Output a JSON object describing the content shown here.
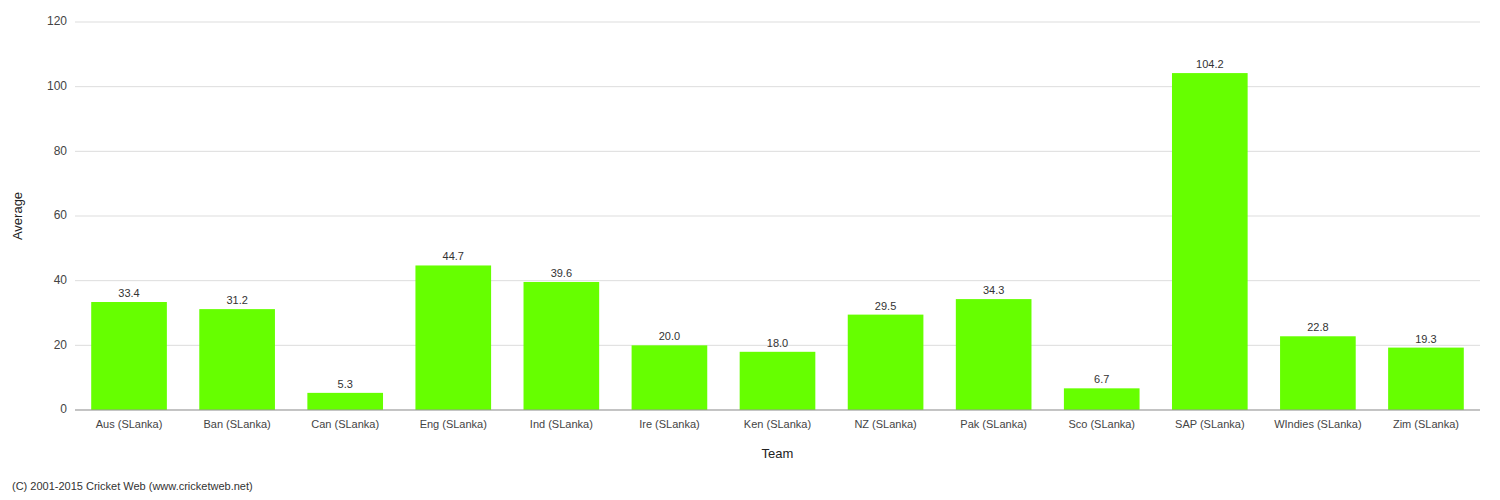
{
  "chart_data": {
    "type": "bar",
    "xlabel": "Team",
    "ylabel": "Average",
    "categories": [
      "Aus (SLanka)",
      "Ban (SLanka)",
      "Can (SLanka)",
      "Eng (SLanka)",
      "Ind (SLanka)",
      "Ire (SLanka)",
      "Ken (SLanka)",
      "NZ (SLanka)",
      "Pak (SLanka)",
      "Sco (SLanka)",
      "SAP (SLanka)",
      "WIndies (SLanka)",
      "Zim (SLanka)"
    ],
    "values": [
      33.4,
      31.2,
      5.3,
      44.7,
      39.6,
      20.0,
      18.0,
      29.5,
      34.3,
      6.7,
      104.2,
      22.8,
      19.3
    ],
    "value_labels": [
      "33.4",
      "31.2",
      "5.3",
      "44.7",
      "39.6",
      "20.0",
      "18.0",
      "29.5",
      "34.3",
      "6.7",
      "104.2",
      "22.8",
      "19.3"
    ],
    "data_labels": true,
    "color": "#66ff00",
    "ylim": [
      0,
      120
    ],
    "yticks": [
      0,
      20,
      40,
      60,
      80,
      100,
      120
    ],
    "grid": true,
    "annotations": [
      "(C) 2001-2015 Cricket Web (www.cricketweb.net)"
    ]
  }
}
